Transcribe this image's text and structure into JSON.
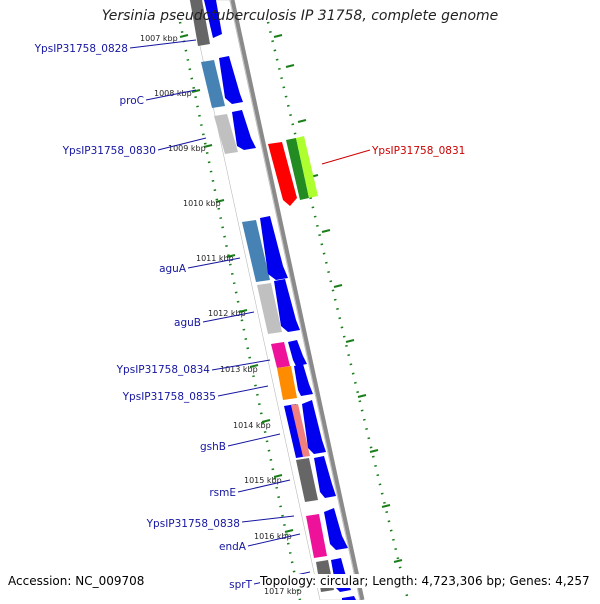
{
  "title": "Yersinia pseudotuberculosis IP 31758, complete genome",
  "footer": {
    "accession": "Accession: NC_009708",
    "summary": "Topology: circular; Length: 4,723,306 bp; Genes: 4,257"
  },
  "colors": {
    "backbone": "#8a8a8a",
    "tick": "#1a7f1a",
    "label_blue": "#1515a0",
    "label_red": "#cc0000",
    "cds_blue": "#0000ee"
  },
  "scale_labels": [
    "1007 kbp",
    "1008 kbp",
    "1009 kbp",
    "1010 kbp",
    "1011 kbp",
    "1012 kbp",
    "1013 kbp",
    "1014 kbp",
    "1015 kbp",
    "1016 kbp",
    "1017 kbp"
  ],
  "genes": [
    {
      "name": "YpsIP31758_0828",
      "strand": "inner",
      "color": "#666666"
    },
    {
      "name": "proC",
      "strand": "inner",
      "color": "#4682b4"
    },
    {
      "name": "YpsIP31758_0830",
      "strand": "inner",
      "color": "#c0c0c0"
    },
    {
      "name": "YpsIP31758_0831",
      "strand": "outer",
      "color": "#ff0000"
    },
    {
      "name": "aguA",
      "strand": "inner",
      "color": "#4682b4"
    },
    {
      "name": "aguB",
      "strand": "inner",
      "color": "#c0c0c0"
    },
    {
      "name": "YpsIP31758_0834",
      "strand": "inner",
      "color": "#ee1199"
    },
    {
      "name": "YpsIP31758_0835",
      "strand": "inner",
      "color": "#ff8c00"
    },
    {
      "name": "gshB",
      "strand": "inner",
      "color": "#f08080"
    },
    {
      "name": "rsmE",
      "strand": "inner",
      "color": "#666666"
    },
    {
      "name": "YpsIP31758_0838",
      "strand": "inner",
      "color": "#ee1199"
    },
    {
      "name": "endA",
      "strand": "inner",
      "color": "#ee1199"
    },
    {
      "name": "sprT",
      "strand": "inner",
      "color": "#666666"
    }
  ]
}
